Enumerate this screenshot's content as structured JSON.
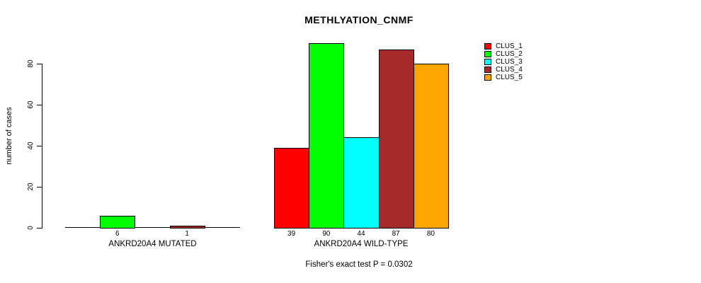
{
  "title": "METHLYATION_CNMF",
  "footer": "Fisher's exact test P = 0.0302",
  "chart_data": {
    "type": "bar",
    "title": "METHLYATION_CNMF",
    "xlabel": "",
    "ylabel": "number of cases",
    "ylim": [
      0,
      90
    ],
    "yticks": [
      0,
      20,
      40,
      60,
      80
    ],
    "grid": false,
    "legend_position": "top-right",
    "categories": [
      "ANKRD20A4 MUTATED",
      "ANKRD20A4 WILD-TYPE"
    ],
    "series": [
      {
        "name": "CLUS_1",
        "color": "#FF0000",
        "values": [
          0,
          39
        ]
      },
      {
        "name": "CLUS_2",
        "color": "#00FF00",
        "values": [
          6,
          90
        ]
      },
      {
        "name": "CLUS_3",
        "color": "#00FFFF",
        "values": [
          0,
          44
        ]
      },
      {
        "name": "CLUS_4",
        "color": "#A52A2A",
        "values": [
          1,
          87
        ]
      },
      {
        "name": "CLUS_5",
        "color": "#FFA500",
        "values": [
          0,
          80
        ]
      }
    ],
    "bar_value_labels": [
      [
        "",
        "6",
        "",
        "1",
        ""
      ],
      [
        "39",
        "90",
        "44",
        "87",
        "80"
      ]
    ],
    "annotation": "Fisher's exact test P = 0.0302"
  }
}
